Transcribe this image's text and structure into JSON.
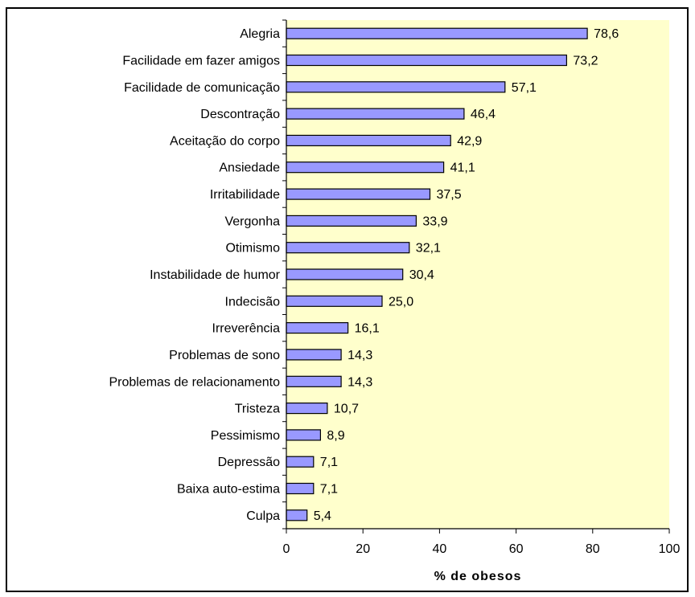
{
  "chart_data": {
    "type": "bar",
    "orientation": "horizontal",
    "categories": [
      "Alegria",
      "Facilidade em fazer amigos",
      "Facilidade de comunicação",
      "Descontração",
      "Aceitação do corpo",
      "Ansiedade",
      "Irritabilidade",
      "Vergonha",
      "Otimismo",
      "Instabilidade de humor",
      "Indecisão",
      "Irreverência",
      "Problemas de sono",
      "Problemas de relacionamento",
      "Tristeza",
      "Pessimismo",
      "Depressão",
      "Baixa auto-estima",
      "Culpa"
    ],
    "values": [
      78.6,
      73.2,
      57.1,
      46.4,
      42.9,
      41.1,
      37.5,
      33.9,
      32.1,
      30.4,
      25.0,
      16.1,
      14.3,
      14.3,
      10.7,
      8.9,
      7.1,
      7.1,
      5.4
    ],
    "value_labels": [
      "78,6",
      "73,2",
      "57,1",
      "46,4",
      "42,9",
      "41,1",
      "37,5",
      "33,9",
      "32,1",
      "30,4",
      "25,0",
      "16,1",
      "14,3",
      "14,3",
      "10,7",
      "8,9",
      "7,1",
      "7,1",
      "5,4"
    ],
    "xlabel": "% de obesos",
    "ylabel": "",
    "xlim": [
      0,
      100
    ],
    "xticks": [
      0,
      20,
      40,
      60,
      80,
      100
    ],
    "grid": false,
    "colors": {
      "bar_fill": "#9999ff",
      "bar_stroke": "#000000",
      "plot_background": "#ffffcc"
    }
  }
}
